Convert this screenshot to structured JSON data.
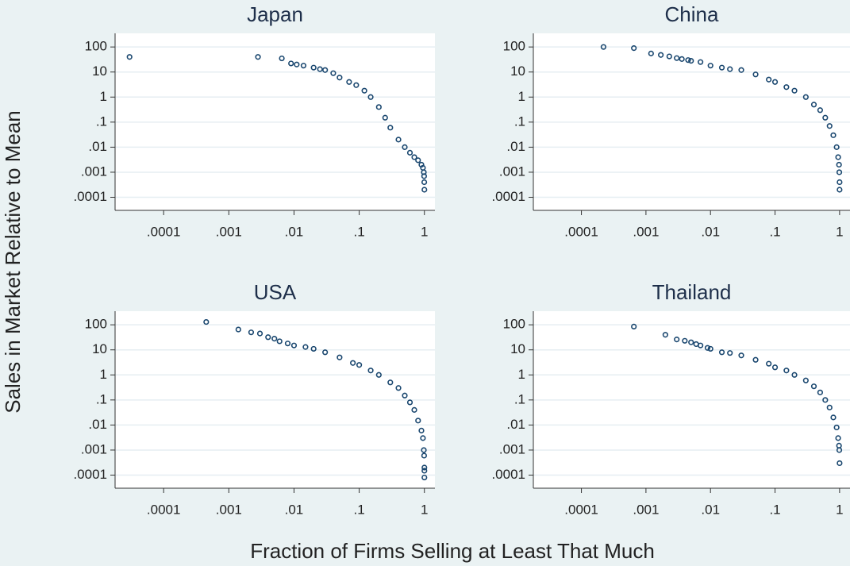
{
  "ylabel": "Sales in Market Relative to Mean",
  "xlabel": "Fraction of Firms Selling at Least That Much",
  "chart_data": [
    {
      "type": "scatter",
      "title": "Japan",
      "log_x": true,
      "log_y": true,
      "grid": true,
      "color": "#1a476f",
      "xlim": [
        1.8e-05,
        1.45
      ],
      "ylim": [
        3e-05,
        350
      ],
      "xticks": [
        {
          "value": 0.0001,
          "label": ".0001"
        },
        {
          "value": 0.001,
          "label": ".001"
        },
        {
          "value": 0.01,
          "label": ".01"
        },
        {
          "value": 0.1,
          "label": ".1"
        },
        1
      ],
      "yticks": [
        100,
        10,
        1,
        {
          "value": 0.1,
          "label": ".1"
        },
        {
          "value": 0.01,
          "label": ".01"
        },
        {
          "value": 0.001,
          "label": ".001"
        },
        {
          "value": 0.0001,
          "label": ".0001"
        }
      ],
      "x": [
        3e-05,
        0.0028,
        0.0065,
        0.009,
        0.011,
        0.014,
        0.02,
        0.025,
        0.03,
        0.04,
        0.05,
        0.07,
        0.09,
        0.12,
        0.15,
        0.2,
        0.25,
        0.3,
        0.4,
        0.5,
        0.6,
        0.7,
        0.8,
        0.9,
        0.95,
        0.98,
        0.99,
        0.995,
        1
      ],
      "values": [
        40,
        40,
        35,
        22,
        20,
        18,
        15,
        13,
        12,
        9,
        6,
        4,
        3,
        1.8,
        1,
        0.4,
        0.15,
        0.06,
        0.02,
        0.01,
        0.006,
        0.004,
        0.003,
        0.002,
        0.0015,
        0.001,
        0.0007,
        0.0004,
        0.0002
      ]
    },
    {
      "type": "scatter",
      "title": "China",
      "log_x": true,
      "log_y": true,
      "grid": true,
      "color": "#1a476f",
      "xlim": [
        1.8e-05,
        1.45
      ],
      "ylim": [
        3e-05,
        350
      ],
      "xticks": [
        {
          "value": 0.0001,
          "label": ".0001"
        },
        {
          "value": 0.001,
          "label": ".001"
        },
        {
          "value": 0.01,
          "label": ".01"
        },
        {
          "value": 0.1,
          "label": ".1"
        },
        1
      ],
      "yticks": [
        100,
        10,
        1,
        {
          "value": 0.1,
          "label": ".1"
        },
        {
          "value": 0.01,
          "label": ".01"
        },
        {
          "value": 0.001,
          "label": ".001"
        },
        {
          "value": 0.0001,
          "label": ".0001"
        }
      ],
      "x": [
        0.00022,
        0.00065,
        0.0012,
        0.0017,
        0.0023,
        0.003,
        0.0036,
        0.0045,
        0.005,
        0.007,
        0.01,
        0.015,
        0.02,
        0.03,
        0.05,
        0.08,
        0.1,
        0.15,
        0.2,
        0.3,
        0.4,
        0.5,
        0.6,
        0.7,
        0.8,
        0.9,
        0.95,
        0.98,
        0.99,
        1,
        1
      ],
      "values": [
        100,
        90,
        55,
        48,
        42,
        36,
        33,
        30,
        28,
        25,
        18,
        15,
        13,
        12,
        8,
        5,
        4,
        2.5,
        1.8,
        1,
        0.5,
        0.3,
        0.15,
        0.07,
        0.03,
        0.01,
        0.004,
        0.002,
        0.001,
        0.0004,
        0.0002
      ]
    },
    {
      "type": "scatter",
      "title": "USA",
      "log_x": true,
      "log_y": true,
      "grid": true,
      "color": "#1a476f",
      "xlim": [
        1.8e-05,
        1.45
      ],
      "ylim": [
        3e-05,
        350
      ],
      "xticks": [
        {
          "value": 0.0001,
          "label": ".0001"
        },
        {
          "value": 0.001,
          "label": ".001"
        },
        {
          "value": 0.01,
          "label": ".01"
        },
        {
          "value": 0.1,
          "label": ".1"
        },
        1
      ],
      "yticks": [
        100,
        10,
        1,
        {
          "value": 0.1,
          "label": ".1"
        },
        {
          "value": 0.01,
          "label": ".01"
        },
        {
          "value": 0.001,
          "label": ".001"
        },
        {
          "value": 0.0001,
          "label": ".0001"
        }
      ],
      "x": [
        0.00045,
        0.0014,
        0.0022,
        0.003,
        0.004,
        0.005,
        0.006,
        0.008,
        0.01,
        0.015,
        0.02,
        0.03,
        0.05,
        0.08,
        0.1,
        0.15,
        0.2,
        0.3,
        0.4,
        0.5,
        0.6,
        0.7,
        0.8,
        0.9,
        0.95,
        0.98,
        0.99,
        1,
        1,
        1
      ],
      "values": [
        130,
        65,
        50,
        45,
        32,
        28,
        22,
        18,
        15,
        13,
        11,
        8,
        5,
        3,
        2.5,
        1.5,
        1,
        0.5,
        0.3,
        0.15,
        0.08,
        0.04,
        0.015,
        0.006,
        0.003,
        0.001,
        0.0006,
        0.0002,
        0.00015,
        8e-05
      ]
    },
    {
      "type": "scatter",
      "title": "Thailand",
      "log_x": true,
      "log_y": true,
      "grid": true,
      "color": "#1a476f",
      "xlim": [
        1.8e-05,
        1.45
      ],
      "ylim": [
        3e-05,
        350
      ],
      "xticks": [
        {
          "value": 0.0001,
          "label": ".0001"
        },
        {
          "value": 0.001,
          "label": ".001"
        },
        {
          "value": 0.01,
          "label": ".01"
        },
        {
          "value": 0.1,
          "label": ".1"
        },
        1
      ],
      "yticks": [
        100,
        10,
        1,
        {
          "value": 0.1,
          "label": ".1"
        },
        {
          "value": 0.01,
          "label": ".01"
        },
        {
          "value": 0.001,
          "label": ".001"
        },
        {
          "value": 0.0001,
          "label": ".0001"
        }
      ],
      "x": [
        0.00065,
        0.002,
        0.003,
        0.004,
        0.005,
        0.006,
        0.007,
        0.009,
        0.01,
        0.015,
        0.02,
        0.03,
        0.05,
        0.08,
        0.1,
        0.15,
        0.2,
        0.3,
        0.4,
        0.5,
        0.6,
        0.7,
        0.8,
        0.9,
        0.95,
        0.98,
        0.99,
        1
      ],
      "values": [
        85,
        40,
        26,
        23,
        20,
        17,
        15,
        12,
        11,
        8,
        7.5,
        6,
        4,
        2.8,
        2,
        1.5,
        1,
        0.6,
        0.35,
        0.2,
        0.1,
        0.05,
        0.02,
        0.008,
        0.003,
        0.0015,
        0.001,
        0.0003
      ]
    }
  ]
}
